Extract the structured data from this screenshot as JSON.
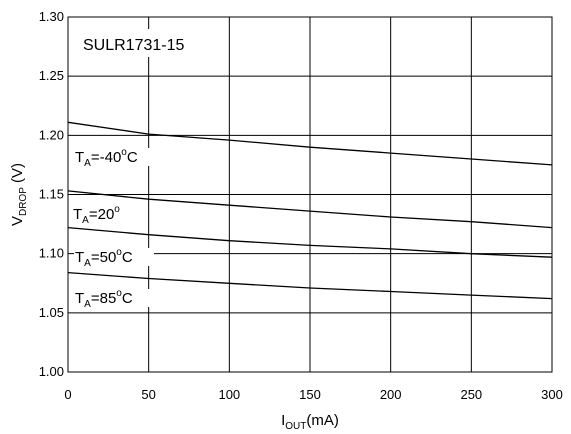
{
  "chart_data": {
    "type": "line",
    "title": "SULR1731-15",
    "xlabel": {
      "main": "I",
      "sub": "OUT",
      "rest": "(mA)"
    },
    "ylabel": {
      "main": "V",
      "sub": "DROP",
      "rest": " (V)"
    },
    "xlim": [
      0,
      300
    ],
    "ylim": [
      1.0,
      1.3
    ],
    "x_ticks": [
      0,
      50,
      100,
      150,
      200,
      250,
      300
    ],
    "y_ticks": [
      "1.00",
      "1.05",
      "1.10",
      "1.15",
      "1.20",
      "1.25",
      "1.30"
    ],
    "grid": true,
    "series": [
      {
        "name": "TA=-40°C",
        "label": {
          "main": "T",
          "sub": "A",
          "rest": "=-40",
          "sup": "o",
          "tail": "C"
        },
        "x": [
          0,
          50,
          100,
          150,
          200,
          250,
          300
        ],
        "y": [
          1.211,
          1.201,
          1.196,
          1.19,
          1.185,
          1.18,
          1.175
        ]
      },
      {
        "name": "TA=20°",
        "label": {
          "main": "T",
          "sub": "A",
          "rest": "=20",
          "sup": "o",
          "tail": ""
        },
        "x": [
          0,
          50,
          100,
          150,
          200,
          250,
          300
        ],
        "y": [
          1.153,
          1.146,
          1.141,
          1.136,
          1.131,
          1.127,
          1.122
        ]
      },
      {
        "name": "TA=50°C",
        "label": {
          "main": "T",
          "sub": "A",
          "rest": "=50",
          "sup": "o",
          "tail": "C"
        },
        "x": [
          0,
          50,
          100,
          150,
          200,
          250,
          300
        ],
        "y": [
          1.122,
          1.116,
          1.111,
          1.107,
          1.104,
          1.1,
          1.097
        ]
      },
      {
        "name": "TA=85°C",
        "label": {
          "main": "T",
          "sub": "A",
          "rest": "=85",
          "sup": "o",
          "tail": "C"
        },
        "x": [
          0,
          50,
          100,
          150,
          200,
          250,
          300
        ],
        "y": [
          1.084,
          1.079,
          1.075,
          1.071,
          1.068,
          1.065,
          1.062
        ]
      }
    ]
  }
}
